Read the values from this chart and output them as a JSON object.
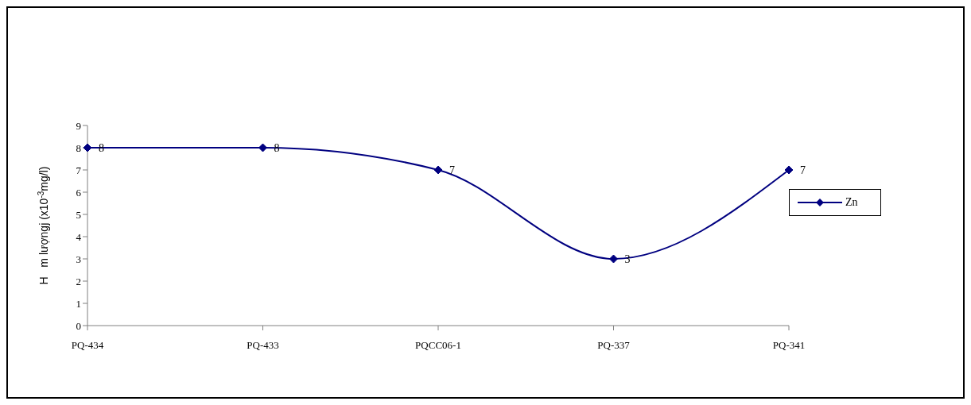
{
  "chart_data": {
    "type": "line",
    "ylabel": "H   m lượngj (x10$^{-3}$mg/l)",
    "categories": [
      "PQ-434",
      "PQ-433",
      "PQCC06-1",
      "PQ-337",
      "PQ-341"
    ],
    "series": [
      {
        "name": "Zn",
        "color": "#000080",
        "values": [
          8,
          8,
          7,
          3,
          7
        ]
      }
    ],
    "ylim": [
      0,
      9
    ],
    "yticks": [
      0,
      1,
      2,
      3,
      4,
      5,
      6,
      7,
      8,
      9
    ],
    "grid": false,
    "legend": "right",
    "marker": "diamond",
    "line_style": "solid",
    "data_labels": true
  }
}
